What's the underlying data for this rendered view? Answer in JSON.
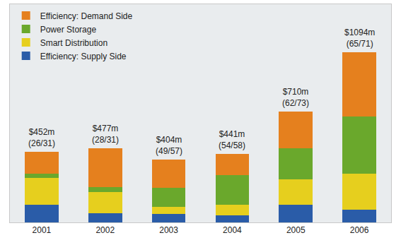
{
  "chart_data": {
    "type": "bar",
    "stacked": true,
    "categories": [
      "2001",
      "2002",
      "2003",
      "2004",
      "2005",
      "2006"
    ],
    "series": [
      {
        "name": "Efficiency: Supply Side",
        "color": "#2a5ca8",
        "values": [
          113,
          59,
          54,
          45,
          113,
          81
        ]
      },
      {
        "name": "Smart Distribution",
        "color": "#e6cf1e",
        "values": [
          172,
          135,
          45,
          68,
          163,
          231
        ]
      },
      {
        "name": "Power Storage",
        "color": "#6aa82c",
        "values": [
          27,
          32,
          122,
          190,
          199,
          366
        ]
      },
      {
        "name": "Efficiency: Demand Side",
        "color": "#e5801e",
        "values": [
          140,
          251,
          183,
          138,
          235,
          416
        ]
      }
    ],
    "annotations": [
      {
        "x": "2001",
        "text": [
          "$452m",
          "(26/31)"
        ]
      },
      {
        "x": "2002",
        "text": [
          "$477m",
          "(28/31)"
        ]
      },
      {
        "x": "2003",
        "text": [
          "$404m",
          "(49/57)"
        ]
      },
      {
        "x": "2004",
        "text": [
          "$441m",
          "(54/58)"
        ]
      },
      {
        "x": "2005",
        "text": [
          "$710m",
          "(62/73)"
        ]
      },
      {
        "x": "2006",
        "text": [
          "$1094m",
          "(65/71)"
        ]
      }
    ],
    "ylim": [
      0,
      1400
    ],
    "yticks": [],
    "grid": false,
    "legend": "top left",
    "tick_labels": "x"
  }
}
